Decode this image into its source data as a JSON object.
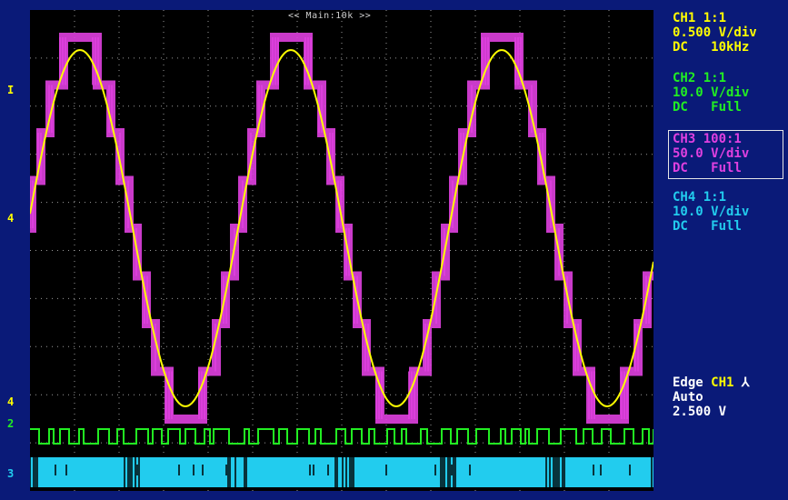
{
  "scope": {
    "timebase_label": "<< Main:10k >>",
    "channels": [
      {
        "id": "ch1",
        "color": "#ffff00",
        "line1": "CH1 1:1",
        "line2": "0.500 V/div",
        "coupling": "DC",
        "bandwidth": "10kHz"
      },
      {
        "id": "ch2",
        "color": "#22ee22",
        "line1": "CH2 1:1",
        "line2": "10.0 V/div",
        "coupling": "DC",
        "bandwidth": "Full"
      },
      {
        "id": "ch3",
        "color": "#e040e0",
        "line1": "CH3 100:1",
        "line2": "50.0 V/div",
        "coupling": "DC",
        "bandwidth": "Full",
        "selected": true
      },
      {
        "id": "ch4",
        "color": "#22ccee",
        "line1": "CH4 1:1",
        "line2": "10.0 V/div",
        "coupling": "DC",
        "bandwidth": "Full"
      }
    ],
    "trigger": {
      "type_label": "Edge",
      "source": "CH1",
      "slope_symbol": "⅄",
      "mode": "Auto",
      "level": "2.500 V"
    },
    "left_markers": [
      "I",
      "4",
      "4",
      "2",
      "3"
    ]
  },
  "chart_data": {
    "type": "line",
    "title": "",
    "xlabel": "",
    "ylabel": "",
    "grid": true,
    "divisions": {
      "x": 14,
      "y": 10
    },
    "series": [
      {
        "name": "CH1",
        "color": "#ffff00",
        "waveform": "sine",
        "cycles": 3,
        "description_values": {
          "peak_division": 4.0,
          "trough_division": -4.0
        }
      },
      {
        "name": "CH3",
        "color": "#e040e0",
        "waveform": "multilevel-stepped-sine",
        "cycles": 3,
        "levels": 9
      },
      {
        "name": "CH2",
        "color": "#22ee22",
        "waveform": "pwm-digital"
      },
      {
        "name": "CH4",
        "color": "#22ccee",
        "waveform": "pwm-digital"
      }
    ]
  }
}
